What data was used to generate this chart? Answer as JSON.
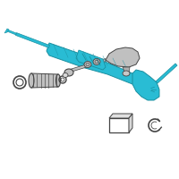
{
  "bg_color": "#ffffff",
  "main_color": "#29bcd4",
  "outline_color": "#1a8fa0",
  "gray_fill": "#c0c0c0",
  "gray_stroke": "#707070",
  "dark_stroke": "#444444",
  "white": "#ffffff",
  "fig_bg": "#f8f8f8"
}
